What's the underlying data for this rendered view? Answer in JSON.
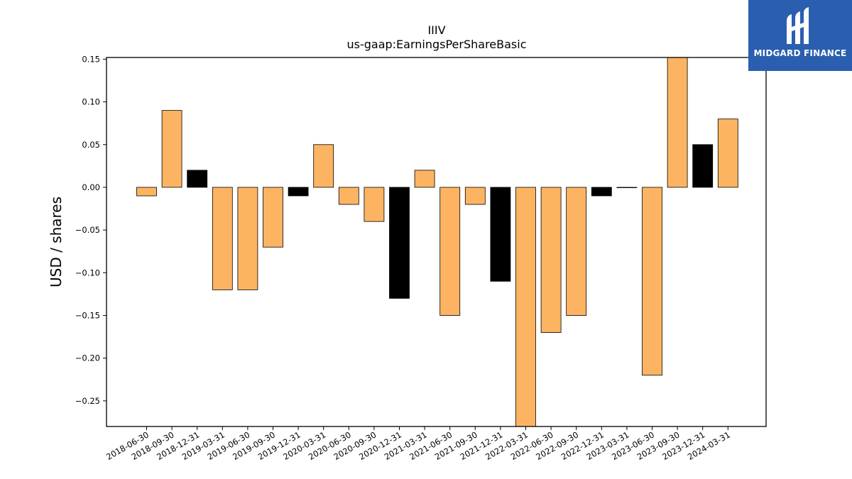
{
  "chart_data": {
    "type": "bar",
    "title": "IIIV",
    "subtitle": "us-gaap:EarningsPerShareBasic",
    "ylabel": "USD / shares",
    "xlabel": "",
    "ylim": [
      -0.28,
      0.152
    ],
    "yticks": [
      "0.15",
      "0.10",
      "0.05",
      "0.00",
      "−0.05",
      "−0.10",
      "−0.15",
      "−0.20",
      "−0.25"
    ],
    "ytick_values": [
      0.15,
      0.1,
      0.05,
      0.0,
      -0.05,
      -0.1,
      -0.15,
      -0.2,
      -0.25
    ],
    "categories": [
      "2018-06-30",
      "2018-09-30",
      "2018-12-31",
      "2019-03-31",
      "2019-06-30",
      "2019-09-30",
      "2019-12-31",
      "2020-03-31",
      "2020-06-30",
      "2020-09-30",
      "2020-12-31",
      "2021-03-31",
      "2021-06-30",
      "2021-09-30",
      "2021-12-31",
      "2022-03-31",
      "2022-06-30",
      "2022-09-30",
      "2022-12-31",
      "2023-03-31",
      "2023-06-30",
      "2023-09-30",
      "2023-12-31",
      "2024-03-31"
    ],
    "values": [
      -0.01,
      0.09,
      0.02,
      -0.12,
      -0.12,
      -0.07,
      -0.01,
      0.05,
      -0.02,
      -0.04,
      -0.13,
      0.02,
      -0.15,
      -0.02,
      -0.11,
      -0.3,
      -0.17,
      -0.15,
      -0.01,
      0.0,
      -0.22,
      0.16,
      0.05,
      0.08
    ],
    "bar_colors": [
      "#fdb462",
      "#fdb462",
      "#000000",
      "#fdb462",
      "#fdb462",
      "#fdb462",
      "#000000",
      "#fdb462",
      "#fdb462",
      "#fdb462",
      "#000000",
      "#fdb462",
      "#fdb462",
      "#fdb462",
      "#000000",
      "#fdb462",
      "#fdb462",
      "#fdb462",
      "#000000",
      "#fdb462",
      "#fdb462",
      "#fdb462",
      "#000000",
      "#fdb462"
    ],
    "grid": false,
    "legend": "none"
  },
  "logo": {
    "text": "MIDGARD FINANCE",
    "background": "#2a5fb0",
    "icon": "midgard-logo-icon"
  }
}
